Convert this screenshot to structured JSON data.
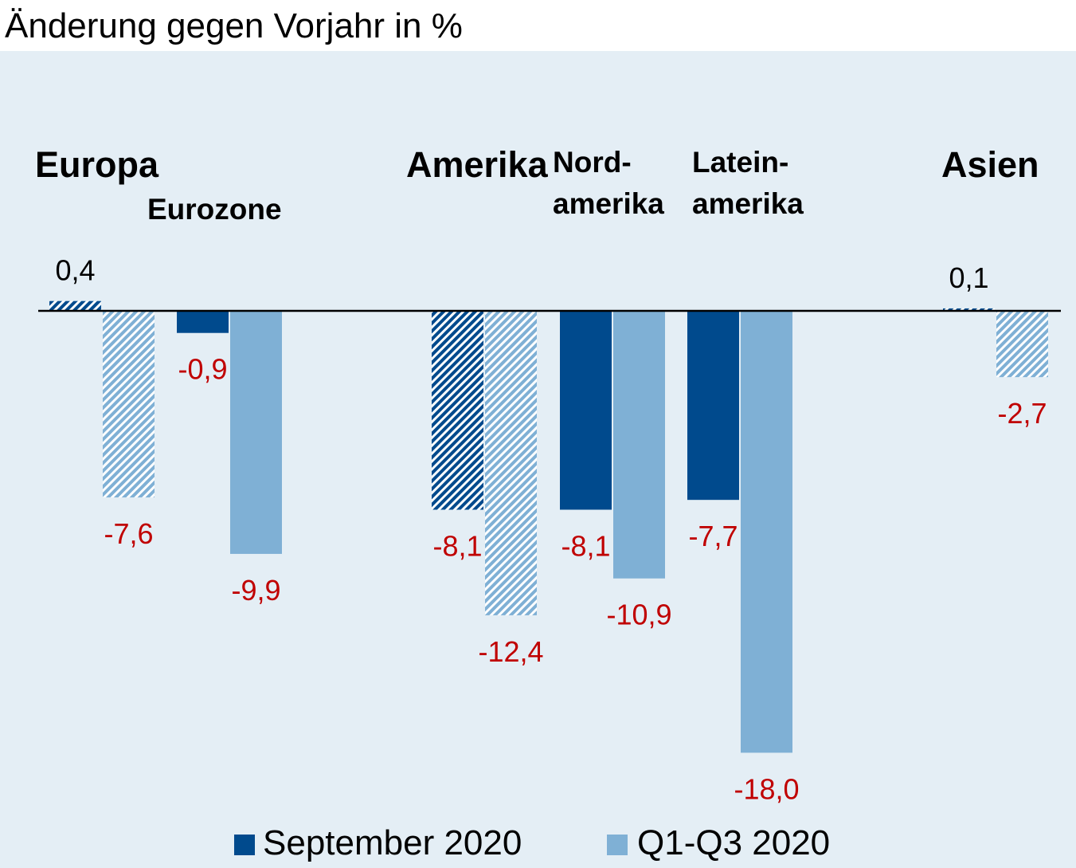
{
  "chart_data": {
    "type": "bar",
    "subtitle": "Änderung gegen Vorjahr in %",
    "categories": [
      "Europa",
      "Eurozone",
      "Amerika",
      "Nordamerika",
      "Lateinamerika",
      "Asien"
    ],
    "group_labels": {
      "Europa": "Europa",
      "Amerika": "Amerika",
      "Asien": "Asien",
      "Eurozone": "Eurozone",
      "Nordamerika": [
        "Nord-",
        "amerika"
      ],
      "Lateinamerika": [
        "Latein-",
        "amerika"
      ]
    },
    "series": [
      {
        "name": "September 2020",
        "values": [
          0.4,
          -0.9,
          -8.1,
          -8.1,
          -7.7,
          0.1
        ]
      },
      {
        "name": "Q1-Q3 2020",
        "values": [
          -7.6,
          -9.9,
          -12.4,
          -10.9,
          -18.0,
          -2.7
        ]
      }
    ],
    "value_labels": {
      "September 2020": [
        "0,4",
        "-0,9",
        "-8,1",
        "-8,1",
        "-7,7",
        "0,1"
      ],
      "Q1-Q3 2020": [
        "-7,6",
        "-9,9",
        "-12,4",
        "-10,9",
        "-18,0",
        "-2,7"
      ]
    },
    "hatched_categories": [
      "Europa",
      "Amerika",
      "Asien"
    ],
    "ylim": [
      -19,
      1.5
    ],
    "grid": false,
    "legend_position": "bottom",
    "colors": {
      "September 2020": "#004a8d",
      "Q1-Q3 2020": "#7fb0d5",
      "negative_label": "#c00000",
      "positive_label": "#000000",
      "background": "#e4eef5"
    }
  }
}
